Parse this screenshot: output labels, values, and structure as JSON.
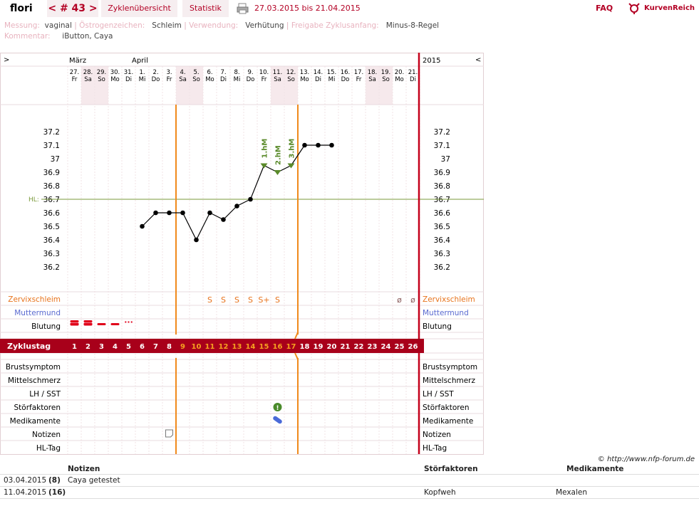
{
  "topbar": {
    "user": "flori",
    "cycle": "< # 43 >",
    "tab_overview": "Zyklenübersicht",
    "tab_stats": "Statistik",
    "date_range": "27.03.2015 bis 21.04.2015",
    "faq": "FAQ",
    "logo": "KurvenReich"
  },
  "meta": {
    "l_measure": "Messung:",
    "v_measure": "vaginal",
    "l_estrogen": "Östrogenzeichen:",
    "v_estrogen": "Schleim",
    "l_usage": "Verwendung:",
    "v_usage": "Verhütung",
    "l_release": "Freigabe Zyklusanfang:",
    "v_release": "Minus-8-Regel",
    "l_comment": "Kommentar:",
    "v_comment": "iButton, Caya",
    "sep": "|"
  },
  "nav": {
    "prev": ">",
    "next": "<",
    "year": "2015",
    "month1": "März",
    "month2": "April"
  },
  "days": [
    {
      "d": "27.",
      "w": "Fr",
      "we": false
    },
    {
      "d": "28.",
      "w": "Sa",
      "we": true
    },
    {
      "d": "29.",
      "w": "So",
      "we": true
    },
    {
      "d": "30.",
      "w": "Mo",
      "we": false
    },
    {
      "d": "31.",
      "w": "Di",
      "we": false
    },
    {
      "d": "1.",
      "w": "Mi",
      "we": false
    },
    {
      "d": "2.",
      "w": "Do",
      "we": false
    },
    {
      "d": "3.",
      "w": "Fr",
      "we": false
    },
    {
      "d": "4.",
      "w": "Sa",
      "we": true
    },
    {
      "d": "5.",
      "w": "So",
      "we": true
    },
    {
      "d": "6.",
      "w": "Mo",
      "we": false
    },
    {
      "d": "7.",
      "w": "Di",
      "we": false
    },
    {
      "d": "8.",
      "w": "Mi",
      "we": false
    },
    {
      "d": "9.",
      "w": "Do",
      "we": false
    },
    {
      "d": "10.",
      "w": "Fr",
      "we": false
    },
    {
      "d": "11.",
      "w": "Sa",
      "we": true
    },
    {
      "d": "12.",
      "w": "So",
      "we": true
    },
    {
      "d": "13.",
      "w": "Mo",
      "we": false
    },
    {
      "d": "14.",
      "w": "Di",
      "we": false
    },
    {
      "d": "15.",
      "w": "Mi",
      "we": false
    },
    {
      "d": "16.",
      "w": "Do",
      "we": false
    },
    {
      "d": "17.",
      "w": "Fr",
      "we": false
    },
    {
      "d": "18.",
      "w": "Sa",
      "we": true
    },
    {
      "d": "19.",
      "w": "So",
      "we": true
    },
    {
      "d": "20.",
      "w": "Mo",
      "we": false
    },
    {
      "d": "21.",
      "w": "Di",
      "we": false
    }
  ],
  "chart_data": {
    "type": "line",
    "yticks": [
      "37.2",
      "37.1",
      "37",
      "36.9",
      "36.8",
      "36.7",
      "36.6",
      "36.5",
      "36.4",
      "36.3",
      "36.2"
    ],
    "ylim": [
      36.2,
      37.2
    ],
    "hl": {
      "label": "HL:",
      "value": 36.7
    },
    "x": [
      1,
      2,
      3,
      4,
      5,
      6,
      7,
      8,
      9,
      10,
      11,
      12,
      13,
      14,
      15,
      16,
      17,
      18,
      19,
      20,
      21,
      22,
      23,
      24,
      25,
      26
    ],
    "temps": [
      null,
      null,
      null,
      null,
      null,
      36.5,
      36.6,
      36.6,
      36.6,
      36.4,
      36.6,
      36.55,
      36.65,
      36.7,
      36.95,
      36.9,
      36.95,
      37.1,
      37.1,
      37.1,
      null,
      null,
      null,
      null,
      null,
      null
    ],
    "hm_labels": [
      {
        "day": 15,
        "text": "1.hM"
      },
      {
        "day": 16,
        "text": "2.hM"
      },
      {
        "day": 17,
        "text": "3.hM"
      }
    ],
    "cycle_days": [
      "1",
      "2",
      "3",
      "4",
      "5",
      "6",
      "7",
      "8",
      "9",
      "10",
      "11",
      "12",
      "13",
      "14",
      "15",
      "16",
      "17",
      "18",
      "19",
      "20",
      "21",
      "22",
      "23",
      "24",
      "25",
      "26"
    ],
    "infertile_lines": [
      9,
      18
    ]
  },
  "rows": {
    "zervix": "Zervixschleim",
    "muttermund": "Muttermund",
    "blutung": "Blutung",
    "zyklustag": "Zyklustag",
    "brust": "Brustsymptom",
    "mittel": "Mittelschmerz",
    "lh": "LH / SST",
    "stoer": "Störfaktoren",
    "medi": "Medikamente",
    "notizen": "Notizen",
    "hltag": "HL-Tag"
  },
  "zervix_marks": [
    {
      "day": 11,
      "t": "S"
    },
    {
      "day": 12,
      "t": "S"
    },
    {
      "day": 13,
      "t": "S"
    },
    {
      "day": 14,
      "t": "S"
    },
    {
      "day": 15,
      "t": "S+"
    },
    {
      "day": 16,
      "t": "S"
    },
    {
      "day": 25,
      "t": "ø"
    },
    {
      "day": 26,
      "t": "ø"
    }
  ],
  "copyright": "© http://www.nfp-forum.de",
  "notes": {
    "h_notes": "Notizen",
    "h_stoer": "Störfaktoren",
    "h_medi": "Medikamente",
    "rows": [
      {
        "date": "03.04.2015",
        "day": "(8)",
        "note": "Caya getestet",
        "stoer": "",
        "medi": ""
      },
      {
        "date": "11.04.2015",
        "day": "(16)",
        "note": "",
        "stoer": "Kopfweh",
        "medi": "Mexalen"
      }
    ]
  }
}
